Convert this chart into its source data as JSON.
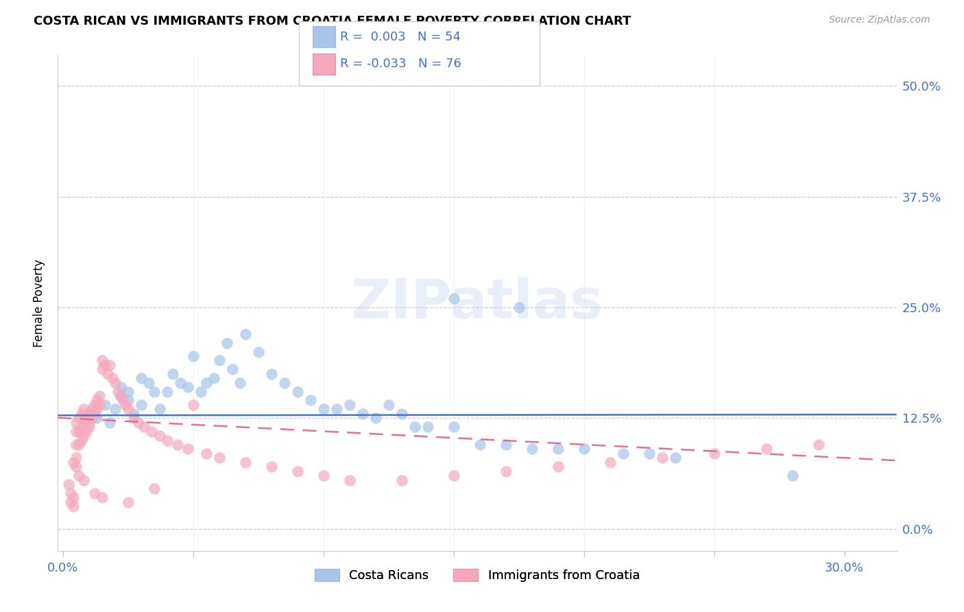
{
  "title": "COSTA RICAN VS IMMIGRANTS FROM CROATIA FEMALE POVERTY CORRELATION CHART",
  "source": "Source: ZipAtlas.com",
  "xlabel_ticks_pos": [
    0.0,
    0.3
  ],
  "xlabel_ticks_labels": [
    "0.0%",
    "30.0%"
  ],
  "ylabel_ticks_pos": [
    0.0,
    0.125,
    0.25,
    0.375,
    0.5
  ],
  "ylabel_ticks_labels": [
    "0.0%",
    "12.5%",
    "25.0%",
    "37.5%",
    "50.0%"
  ],
  "xlim": [
    -0.002,
    0.32
  ],
  "ylim": [
    -0.025,
    0.535
  ],
  "ylabel": "Female Poverty",
  "legend_label1": "Costa Ricans",
  "legend_label2": "Immigrants from Croatia",
  "r1": "0.003",
  "n1": "54",
  "r2": "-0.033",
  "n2": "76",
  "color1": "#a8c4e8",
  "color2": "#f5a8bc",
  "line_color1": "#4472c4",
  "line_color2": "#e07090",
  "watermark": "ZIPatlas",
  "scatter1_x": [
    0.01,
    0.013,
    0.016,
    0.018,
    0.02,
    0.022,
    0.022,
    0.025,
    0.025,
    0.027,
    0.03,
    0.03,
    0.033,
    0.035,
    0.037,
    0.04,
    0.042,
    0.045,
    0.048,
    0.05,
    0.053,
    0.055,
    0.058,
    0.06,
    0.063,
    0.065,
    0.068,
    0.07,
    0.075,
    0.08,
    0.085,
    0.09,
    0.095,
    0.1,
    0.105,
    0.11,
    0.115,
    0.12,
    0.125,
    0.13,
    0.135,
    0.14,
    0.15,
    0.16,
    0.17,
    0.18,
    0.19,
    0.2,
    0.215,
    0.225,
    0.235,
    0.15,
    0.175,
    0.28
  ],
  "scatter1_y": [
    0.13,
    0.125,
    0.14,
    0.12,
    0.135,
    0.16,
    0.15,
    0.145,
    0.155,
    0.13,
    0.17,
    0.14,
    0.165,
    0.155,
    0.135,
    0.155,
    0.175,
    0.165,
    0.16,
    0.195,
    0.155,
    0.165,
    0.17,
    0.19,
    0.21,
    0.18,
    0.165,
    0.22,
    0.2,
    0.175,
    0.165,
    0.155,
    0.145,
    0.135,
    0.135,
    0.14,
    0.13,
    0.125,
    0.14,
    0.13,
    0.115,
    0.115,
    0.115,
    0.095,
    0.095,
    0.09,
    0.09,
    0.09,
    0.085,
    0.085,
    0.08,
    0.26,
    0.25,
    0.06
  ],
  "scatter2_x": [
    0.002,
    0.003,
    0.003,
    0.004,
    0.004,
    0.005,
    0.005,
    0.005,
    0.005,
    0.006,
    0.006,
    0.006,
    0.007,
    0.007,
    0.007,
    0.008,
    0.008,
    0.008,
    0.009,
    0.009,
    0.01,
    0.01,
    0.01,
    0.011,
    0.011,
    0.012,
    0.012,
    0.013,
    0.013,
    0.014,
    0.014,
    0.015,
    0.015,
    0.016,
    0.017,
    0.018,
    0.019,
    0.02,
    0.021,
    0.022,
    0.023,
    0.024,
    0.025,
    0.027,
    0.029,
    0.031,
    0.034,
    0.037,
    0.04,
    0.044,
    0.048,
    0.055,
    0.06,
    0.07,
    0.08,
    0.09,
    0.1,
    0.11,
    0.13,
    0.15,
    0.17,
    0.19,
    0.21,
    0.23,
    0.25,
    0.27,
    0.29,
    0.05,
    0.025,
    0.035,
    0.015,
    0.012,
    0.008,
    0.006,
    0.005,
    0.004
  ],
  "scatter2_y": [
    0.05,
    0.04,
    0.03,
    0.035,
    0.025,
    0.08,
    0.095,
    0.11,
    0.12,
    0.095,
    0.11,
    0.125,
    0.1,
    0.115,
    0.13,
    0.105,
    0.12,
    0.135,
    0.11,
    0.125,
    0.115,
    0.13,
    0.12,
    0.135,
    0.125,
    0.14,
    0.13,
    0.145,
    0.135,
    0.15,
    0.14,
    0.19,
    0.18,
    0.185,
    0.175,
    0.185,
    0.17,
    0.165,
    0.155,
    0.15,
    0.145,
    0.14,
    0.135,
    0.125,
    0.12,
    0.115,
    0.11,
    0.105,
    0.1,
    0.095,
    0.09,
    0.085,
    0.08,
    0.075,
    0.07,
    0.065,
    0.06,
    0.055,
    0.055,
    0.06,
    0.065,
    0.07,
    0.075,
    0.08,
    0.085,
    0.09,
    0.095,
    0.14,
    0.03,
    0.045,
    0.035,
    0.04,
    0.055,
    0.06,
    0.07,
    0.075
  ]
}
